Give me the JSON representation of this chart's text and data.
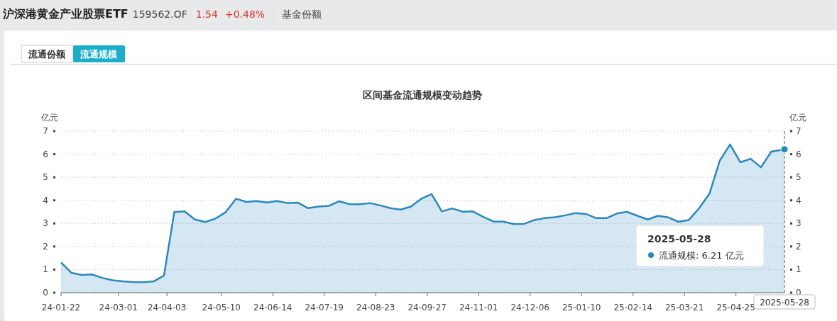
{
  "chart_data": {
    "type": "area",
    "title": "区间基金流通规模变动趋势",
    "ylabel": "亿元",
    "y2label": "亿元",
    "annotations": [
      "沪深港黄金产业股票ETF",
      "159562.OF",
      "1.54",
      "+0.48%",
      "基金份额",
      "流通份额",
      "流通规模",
      "2025-05-28",
      "流通规模: 6.21 亿元"
    ],
    "x": [
      "2024-01-22",
      "2024-01-29",
      "2024-02-05",
      "2024-02-12",
      "2024-02-19",
      "2024-02-26",
      "2024-03-04",
      "2024-03-11",
      "2024-03-18",
      "2024-03-25",
      "2024-04-01",
      "2024-04-08",
      "2024-04-15",
      "2024-04-22",
      "2024-04-29",
      "2024-05-06",
      "2024-05-13",
      "2024-05-20",
      "2024-05-27",
      "2024-06-03",
      "2024-06-10",
      "2024-06-17",
      "2024-06-24",
      "2024-07-01",
      "2024-07-08",
      "2024-07-15",
      "2024-07-22",
      "2024-07-29",
      "2024-08-05",
      "2024-08-12",
      "2024-08-19",
      "2024-08-26",
      "2024-09-02",
      "2024-09-09",
      "2024-09-16",
      "2024-09-23",
      "2024-09-30",
      "2024-10-07",
      "2024-10-14",
      "2024-10-21",
      "2024-10-28",
      "2024-11-04",
      "2024-11-11",
      "2024-11-18",
      "2024-11-25",
      "2024-12-02",
      "2024-12-09",
      "2024-12-16",
      "2024-12-23",
      "2024-12-30",
      "2025-01-06",
      "2025-01-13",
      "2025-01-20",
      "2025-01-27",
      "2025-02-03",
      "2025-02-10",
      "2025-02-17",
      "2025-02-24",
      "2025-03-03",
      "2025-03-10",
      "2025-03-17",
      "2025-03-24",
      "2025-03-31",
      "2025-04-07",
      "2025-04-14",
      "2025-04-21",
      "2025-04-28",
      "2025-05-05",
      "2025-05-12",
      "2025-05-19",
      "2025-05-28"
    ],
    "series": [
      {
        "color": "#2a88bd",
        "values": [
          1.31,
          0.86,
          0.77,
          0.79,
          0.64,
          0.54,
          0.49,
          0.46,
          0.45,
          0.49,
          0.74,
          3.49,
          3.52,
          3.17,
          3.06,
          3.21,
          3.49,
          4.07,
          3.93,
          3.97,
          3.91,
          3.97,
          3.88,
          3.9,
          3.66,
          3.73,
          3.76,
          3.96,
          3.84,
          3.83,
          3.88,
          3.78,
          3.66,
          3.6,
          3.73,
          4.07,
          4.27,
          3.52,
          3.65,
          3.51,
          3.52,
          3.29,
          3.08,
          3.08,
          2.97,
          2.98,
          3.15,
          3.23,
          3.27,
          3.35,
          3.45,
          3.41,
          3.23,
          3.23,
          3.43,
          3.5,
          3.33,
          3.17,
          3.33,
          3.26,
          3.07,
          3.15,
          3.66,
          4.29,
          5.72,
          6.42,
          5.65,
          5.8,
          5.43,
          6.11,
          6.21
        ]
      }
    ],
    "xlim": [
      "2024-01-22",
      "2025-05-28"
    ],
    "xticks": [
      {
        "value": "2024-01-22",
        "label": "24-01-22"
      },
      {
        "value": "2024-03-01",
        "label": "24-03-01"
      },
      {
        "value": "2024-04-03",
        "label": "24-04-03"
      },
      {
        "value": "2024-05-10",
        "label": "24-05-10"
      },
      {
        "value": "2024-06-14",
        "label": "24-06-14"
      },
      {
        "value": "2024-07-19",
        "label": "24-07-19"
      },
      {
        "value": "2024-08-23",
        "label": "24-08-23"
      },
      {
        "value": "2024-09-27",
        "label": "24-09-27"
      },
      {
        "value": "2024-11-01",
        "label": "24-11-01"
      },
      {
        "value": "2024-12-06",
        "label": "24-12-06"
      },
      {
        "value": "2025-01-10",
        "label": "25-01-10"
      },
      {
        "value": "2025-02-14",
        "label": "25-02-14"
      },
      {
        "value": "2025-03-21",
        "label": "25-03-21"
      },
      {
        "value": "2025-04-25",
        "label": "25-04-25"
      }
    ],
    "ylim": [
      0,
      7
    ],
    "yticks": [
      0,
      1,
      2,
      3,
      4,
      5,
      6,
      7
    ],
    "y2lim": [
      0,
      7
    ],
    "y2ticks": [
      0,
      1,
      2,
      3,
      4,
      5,
      6,
      7
    ],
    "ref_lines": [
      {
        "axis": "x",
        "value": "2025-05-28",
        "label": "2025-05-28",
        "line_style": "dashed",
        "color": "#555555"
      }
    ],
    "grid": "y",
    "marker": "none"
  }
}
